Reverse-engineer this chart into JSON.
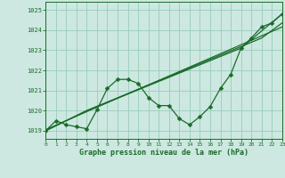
{
  "bg_color": "#cce8e0",
  "plot_bg_color": "#cce8e0",
  "grid_color": "#99ccbb",
  "line_color": "#1a6b2a",
  "xlabel": "Graphe pression niveau de la mer (hPa)",
  "ylim": [
    1018.6,
    1025.4
  ],
  "xlim": [
    0,
    23
  ],
  "yticks": [
    1019,
    1020,
    1021,
    1022,
    1023,
    1024,
    1025
  ],
  "xticks": [
    0,
    1,
    2,
    3,
    4,
    5,
    6,
    7,
    8,
    9,
    10,
    11,
    12,
    13,
    14,
    15,
    16,
    17,
    18,
    19,
    20,
    21,
    22,
    23
  ],
  "line1_y": [
    1019.0,
    1019.5,
    1019.3,
    1019.2,
    1019.1,
    1020.05,
    1021.1,
    1021.55,
    1021.55,
    1021.35,
    1020.65,
    1020.25,
    1020.25,
    1019.6,
    1019.3,
    1019.7,
    1020.2,
    1021.1,
    1021.8,
    1023.1,
    1023.6,
    1024.15,
    1024.35,
    1024.8
  ],
  "line2_x": [
    0,
    4,
    19,
    23
  ],
  "line2_y": [
    1019.0,
    1020.0,
    1023.1,
    1024.8
  ],
  "line3_x": [
    0,
    4,
    21,
    23
  ],
  "line3_y": [
    1019.0,
    1020.0,
    1023.6,
    1024.35
  ],
  "line4_x": [
    0,
    4,
    23
  ],
  "line4_y": [
    1019.05,
    1019.95,
    1024.15
  ]
}
